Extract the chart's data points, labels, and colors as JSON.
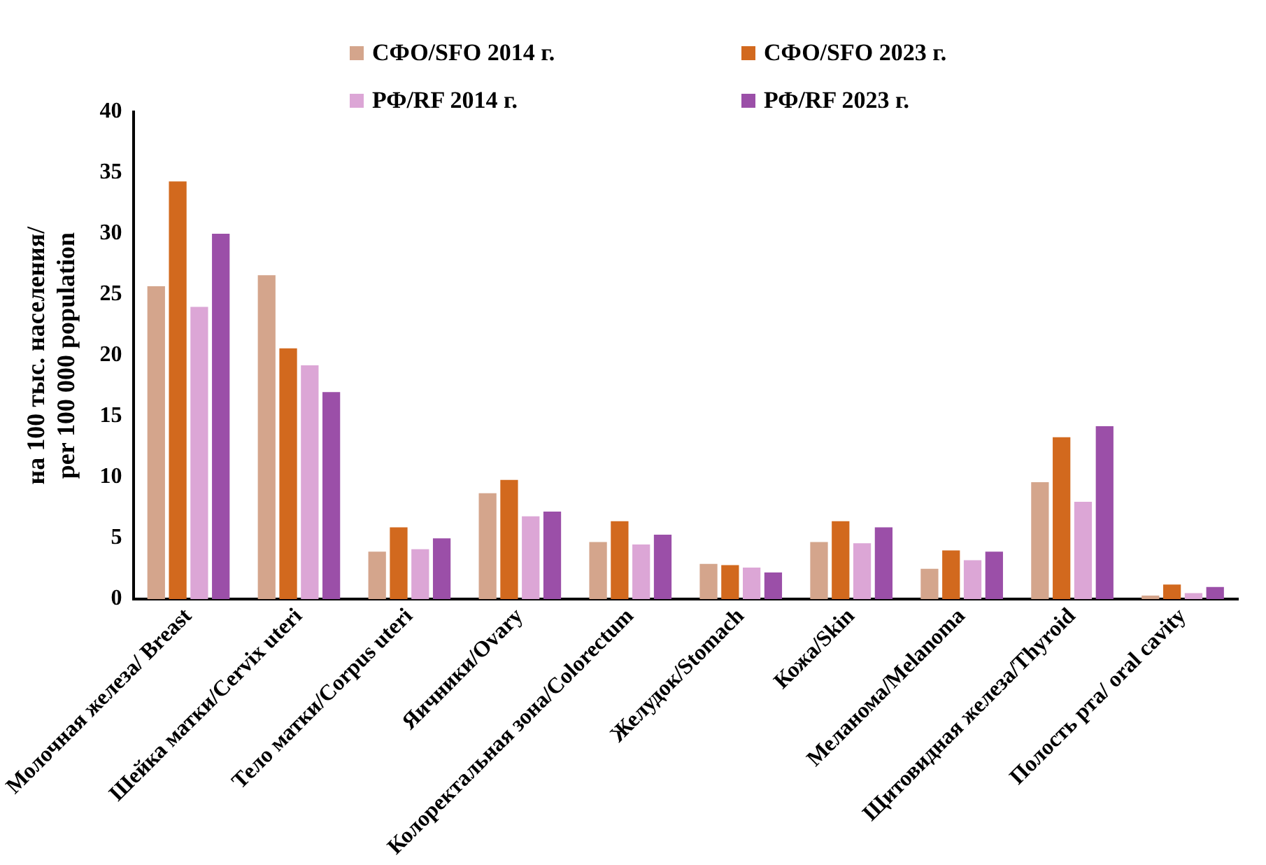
{
  "chart_data": {
    "type": "bar",
    "ylabel": "на 100 тыс. населения/\nper 100 000 population",
    "categories": [
      "Молочная железа/ Breast",
      "Шейка матки/Cervix uteri",
      "Тело матки/Corpus uteri",
      "Яичники/Ovary",
      "Колоректальная зона/Colorectum",
      "Желудок/Stomach",
      "Кожа/Skin",
      "Меланома/Melanoma",
      "Щитовидная железа/Thyroid",
      "Полость рта/ oral cavity"
    ],
    "series": [
      {
        "name": "СФО/SFO 2014 г.",
        "color": "#d4a58c",
        "values": [
          25.7,
          26.6,
          3.9,
          8.7,
          4.7,
          2.9,
          4.7,
          2.5,
          9.6,
          0.3
        ]
      },
      {
        "name": "СФО/SFO 2023 г.",
        "color": "#d2691e",
        "values": [
          34.3,
          20.6,
          5.9,
          9.8,
          6.4,
          2.8,
          6.4,
          4.0,
          13.3,
          1.2
        ]
      },
      {
        "name": "РФ/RF 2014 г.",
        "color": "#dca6d6",
        "values": [
          24.0,
          19.2,
          4.1,
          6.8,
          4.5,
          2.6,
          4.6,
          3.2,
          8.0,
          0.5
        ]
      },
      {
        "name": "РФ/RF 2023 г.",
        "color": "#9b4fa8",
        "values": [
          30.0,
          17.0,
          5.0,
          7.2,
          5.3,
          2.2,
          5.9,
          3.9,
          14.2,
          1.0
        ]
      }
    ],
    "ylim": [
      0,
      40
    ],
    "yticks": [
      0,
      5,
      10,
      15,
      20,
      25,
      30,
      35,
      40
    ],
    "grid": false,
    "legend": "top"
  }
}
